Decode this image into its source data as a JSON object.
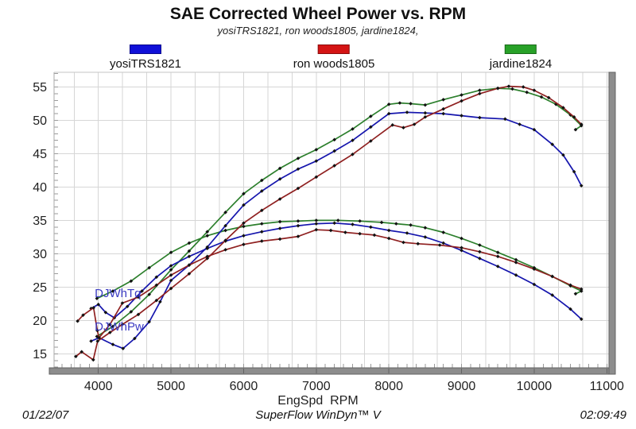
{
  "title": "SAE Corrected Wheel Power vs. RPM",
  "subtitle": "yosiTRS1821, ron woods1805, jardine1824,",
  "legend": [
    {
      "label": "yosiTRS1821",
      "color": "#1010d8"
    },
    {
      "label": "ron woods1805",
      "color": "#d41414"
    },
    {
      "label": "jardine1824",
      "color": "#28a128"
    }
  ],
  "annotations": [
    {
      "text": "DJWhTq",
      "rpm": 3950,
      "value": 23.8
    },
    {
      "text": "DJWhPw",
      "rpm": 3950,
      "value": 18.9
    }
  ],
  "x_axis_label": "EngSpd  RPM",
  "footer": {
    "date": "01/22/07",
    "center": "SuperFlow WinDyn™ V",
    "time": "02:09:49"
  },
  "colors": {
    "grid": "#d6d6d6",
    "border_left": "#a8a8a8",
    "border_top": "#c6c6c6",
    "axis_bar": "#8d8d8d",
    "axis_bar_edge": "#626262",
    "tick": "#9a9a9a",
    "tick_label": "#1f1f1f",
    "marker": "#121212",
    "annotation": "#3a3ac2"
  },
  "chart_data": {
    "type": "line",
    "title": "SAE Corrected Wheel Power vs. RPM",
    "xlabel": "EngSpd  RPM",
    "ylabel": "",
    "x_range": [
      3390,
      11030
    ],
    "y_range": [
      12.9,
      57.2
    ],
    "x_ticks": [
      4000,
      5000,
      6000,
      7000,
      8000,
      9000,
      10000,
      11000
    ],
    "y_ticks": [
      15,
      20,
      25,
      30,
      35,
      40,
      45,
      50,
      55
    ],
    "x_minor_tick_step": 125,
    "y_minor_tick_step": 1,
    "x_grid_step": 333.333,
    "grid": true,
    "legend_position": "top",
    "series": [
      {
        "name": "jardine1824",
        "channel": "DJWhPw",
        "color": "#2c7f2c",
        "points": [
          [
            3980,
            17.6
          ],
          [
            4200,
            19.1
          ],
          [
            4450,
            21.3
          ],
          [
            4700,
            23.9
          ],
          [
            5000,
            27.6
          ],
          [
            5250,
            30.4
          ],
          [
            5500,
            33.3
          ],
          [
            5750,
            36.2
          ],
          [
            6000,
            39.0
          ],
          [
            6250,
            41.0
          ],
          [
            6500,
            42.8
          ],
          [
            6750,
            44.3
          ],
          [
            7000,
            45.6
          ],
          [
            7250,
            47.1
          ],
          [
            7500,
            48.7
          ],
          [
            7750,
            50.6
          ],
          [
            8000,
            52.4
          ],
          [
            8150,
            52.6
          ],
          [
            8300,
            52.5
          ],
          [
            8500,
            52.3
          ],
          [
            8750,
            53.1
          ],
          [
            9000,
            53.8
          ],
          [
            9250,
            54.5
          ],
          [
            9500,
            54.8
          ],
          [
            9700,
            54.7
          ],
          [
            9900,
            54.2
          ],
          [
            10100,
            53.5
          ],
          [
            10300,
            52.4
          ],
          [
            10500,
            50.8
          ],
          [
            10650,
            49.2
          ],
          [
            10570,
            48.6
          ]
        ]
      },
      {
        "name": "jardine1824",
        "channel": "DJWhTq",
        "color": "#2c7f2c",
        "points": [
          [
            3980,
            23.3
          ],
          [
            4200,
            24.4
          ],
          [
            4450,
            25.9
          ],
          [
            4700,
            27.9
          ],
          [
            5000,
            30.2
          ],
          [
            5250,
            31.6
          ],
          [
            5500,
            32.7
          ],
          [
            5750,
            33.5
          ],
          [
            6000,
            34.1
          ],
          [
            6250,
            34.5
          ],
          [
            6500,
            34.8
          ],
          [
            6750,
            34.9
          ],
          [
            7000,
            35.0
          ],
          [
            7300,
            35.0
          ],
          [
            7600,
            34.9
          ],
          [
            7900,
            34.7
          ],
          [
            8100,
            34.5
          ],
          [
            8300,
            34.3
          ],
          [
            8500,
            33.9
          ],
          [
            8750,
            33.2
          ],
          [
            9000,
            32.3
          ],
          [
            9250,
            31.3
          ],
          [
            9500,
            30.2
          ],
          [
            9750,
            29.1
          ],
          [
            10000,
            27.9
          ],
          [
            10250,
            26.6
          ],
          [
            10500,
            25.2
          ],
          [
            10650,
            24.4
          ],
          [
            10570,
            24.0
          ]
        ]
      },
      {
        "name": "yosiTRS1821",
        "channel": "DJWhPw",
        "color": "#1515ad",
        "points": [
          [
            3900,
            16.9
          ],
          [
            4010,
            17.4
          ],
          [
            4200,
            16.4
          ],
          [
            4340,
            15.8
          ],
          [
            4500,
            17.3
          ],
          [
            4700,
            19.8
          ],
          [
            4850,
            22.8
          ],
          [
            5000,
            26.0
          ],
          [
            5250,
            28.3
          ],
          [
            5500,
            31.0
          ],
          [
            5750,
            34.2
          ],
          [
            6000,
            37.3
          ],
          [
            6250,
            39.4
          ],
          [
            6500,
            41.2
          ],
          [
            6750,
            42.7
          ],
          [
            7000,
            43.9
          ],
          [
            7250,
            45.4
          ],
          [
            7500,
            47.0
          ],
          [
            7750,
            49.0
          ],
          [
            8000,
            51.0
          ],
          [
            8250,
            51.2
          ],
          [
            8500,
            51.1
          ],
          [
            8750,
            51.0
          ],
          [
            9000,
            50.7
          ],
          [
            9250,
            50.4
          ],
          [
            9600,
            50.2
          ],
          [
            9800,
            49.4
          ],
          [
            10000,
            48.6
          ],
          [
            10250,
            46.4
          ],
          [
            10400,
            44.8
          ],
          [
            10550,
            42.3
          ],
          [
            10650,
            40.2
          ]
        ]
      },
      {
        "name": "yosiTRS1821",
        "channel": "DJWhTq",
        "color": "#1515ad",
        "points": [
          [
            3900,
            21.8
          ],
          [
            4000,
            22.4
          ],
          [
            4100,
            21.2
          ],
          [
            4220,
            20.4
          ],
          [
            4400,
            22.1
          ],
          [
            4600,
            24.4
          ],
          [
            4800,
            26.5
          ],
          [
            5000,
            28.2
          ],
          [
            5250,
            29.6
          ],
          [
            5500,
            30.8
          ],
          [
            5750,
            31.9
          ],
          [
            6000,
            32.7
          ],
          [
            6250,
            33.3
          ],
          [
            6500,
            33.8
          ],
          [
            6750,
            34.2
          ],
          [
            7000,
            34.5
          ],
          [
            7250,
            34.6
          ],
          [
            7500,
            34.4
          ],
          [
            7750,
            34.0
          ],
          [
            8000,
            33.5
          ],
          [
            8250,
            33.1
          ],
          [
            8500,
            32.5
          ],
          [
            8750,
            31.6
          ],
          [
            9000,
            30.5
          ],
          [
            9250,
            29.3
          ],
          [
            9500,
            28.1
          ],
          [
            9750,
            26.8
          ],
          [
            10000,
            25.4
          ],
          [
            10250,
            23.8
          ],
          [
            10500,
            21.7
          ],
          [
            10650,
            20.2
          ]
        ]
      },
      {
        "name": "ron woods1805",
        "channel": "DJWhPw",
        "color": "#8f2020",
        "points": [
          [
            3690,
            14.6
          ],
          [
            3770,
            15.3
          ],
          [
            3930,
            14.1
          ],
          [
            3990,
            16.9
          ],
          [
            4160,
            18.2
          ],
          [
            4330,
            19.4
          ],
          [
            4550,
            20.9
          ],
          [
            4800,
            23.0
          ],
          [
            5000,
            24.8
          ],
          [
            5250,
            27.0
          ],
          [
            5500,
            29.3
          ],
          [
            5750,
            32.0
          ],
          [
            6000,
            34.6
          ],
          [
            6250,
            36.5
          ],
          [
            6500,
            38.2
          ],
          [
            6750,
            39.8
          ],
          [
            7000,
            41.5
          ],
          [
            7250,
            43.2
          ],
          [
            7500,
            44.9
          ],
          [
            7750,
            46.9
          ],
          [
            8050,
            49.3
          ],
          [
            8200,
            48.9
          ],
          [
            8350,
            49.4
          ],
          [
            8500,
            50.5
          ],
          [
            8750,
            51.7
          ],
          [
            9000,
            52.9
          ],
          [
            9250,
            54.0
          ],
          [
            9500,
            54.8
          ],
          [
            9650,
            55.1
          ],
          [
            9850,
            55.0
          ],
          [
            10000,
            54.5
          ],
          [
            10200,
            53.4
          ],
          [
            10400,
            51.9
          ],
          [
            10550,
            50.5
          ],
          [
            10650,
            49.4
          ]
        ]
      },
      {
        "name": "ron woods1805",
        "channel": "DJWhTq",
        "color": "#8f2020",
        "points": [
          [
            3714,
            19.9
          ],
          [
            3790,
            20.8
          ],
          [
            3934,
            21.9
          ],
          [
            3985,
            18.5
          ],
          [
            4010,
            17.4
          ],
          [
            4160,
            19.4
          ],
          [
            4330,
            22.6
          ],
          [
            4550,
            23.5
          ],
          [
            4800,
            25.3
          ],
          [
            5000,
            26.8
          ],
          [
            5250,
            28.3
          ],
          [
            5500,
            29.6
          ],
          [
            5750,
            30.6
          ],
          [
            6000,
            31.4
          ],
          [
            6250,
            31.9
          ],
          [
            6500,
            32.2
          ],
          [
            6750,
            32.6
          ],
          [
            7000,
            33.6
          ],
          [
            7200,
            33.5
          ],
          [
            7400,
            33.2
          ],
          [
            7600,
            33.0
          ],
          [
            7800,
            32.8
          ],
          [
            8000,
            32.3
          ],
          [
            8200,
            31.7
          ],
          [
            8400,
            31.5
          ],
          [
            8700,
            31.3
          ],
          [
            9000,
            30.9
          ],
          [
            9250,
            30.3
          ],
          [
            9500,
            29.6
          ],
          [
            9750,
            28.7
          ],
          [
            10000,
            27.7
          ],
          [
            10250,
            26.6
          ],
          [
            10500,
            25.3
          ],
          [
            10650,
            24.7
          ]
        ]
      }
    ]
  }
}
